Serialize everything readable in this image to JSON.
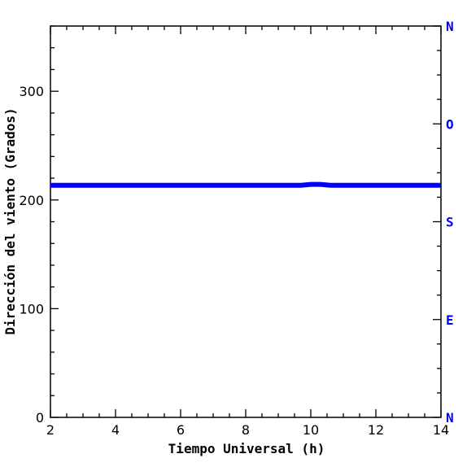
{
  "chart_data": {
    "type": "line",
    "title": "",
    "xlabel": "Tiempo Universal (h)",
    "ylabel": "Dirección del viento (Grados)",
    "xlim": [
      2,
      14
    ],
    "ylim": [
      0,
      360
    ],
    "x_ticks": [
      "2",
      "4",
      "6",
      "8",
      "10",
      "12",
      "14"
    ],
    "y_ticks": [
      "0",
      "100",
      "200",
      "300"
    ],
    "right_axis_labels": [
      "N",
      "E",
      "S",
      "O",
      "N"
    ],
    "right_axis_values": [
      0,
      90,
      180,
      270,
      360
    ],
    "series": [
      {
        "color": "#0000ff",
        "x": [
          2,
          3,
          4,
          5,
          6,
          7,
          8,
          9,
          9.7,
          10,
          10.3,
          10.6,
          11,
          12,
          13,
          14
        ],
        "y": [
          213.5,
          213.5,
          213.5,
          213.5,
          213.5,
          213.5,
          213.5,
          213.5,
          213.5,
          214.3,
          214.3,
          213.5,
          213.5,
          213.5,
          213.5,
          213.5
        ]
      }
    ],
    "grid": false,
    "colors": {
      "axis": "#000000",
      "series": "#0000ff",
      "compass": "#0000ff"
    }
  }
}
